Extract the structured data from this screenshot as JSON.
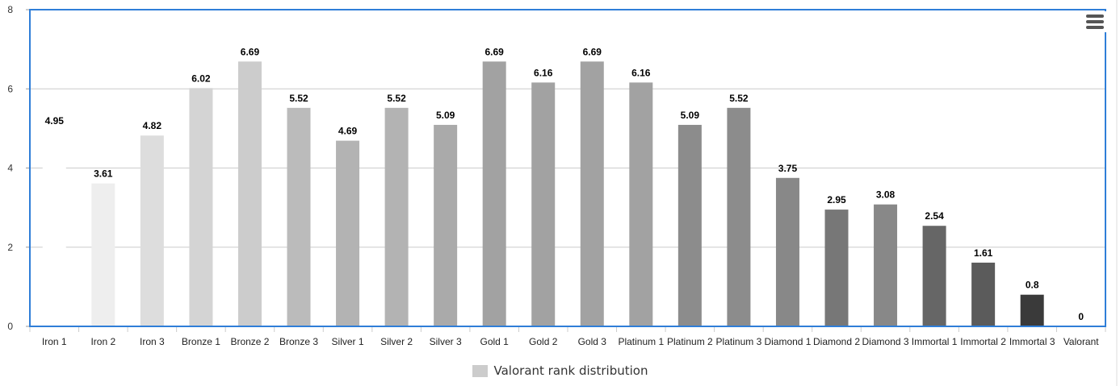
{
  "chart_data": {
    "type": "bar",
    "categories": [
      "Iron 1",
      "Iron 2",
      "Iron 3",
      "Bronze 1",
      "Bronze 2",
      "Bronze 3",
      "Silver 1",
      "Silver 2",
      "Silver 3",
      "Gold 1",
      "Gold 2",
      "Gold 3",
      "Platinum 1",
      "Platinum 2",
      "Platinum 3",
      "Diamond 1",
      "Diamond 2",
      "Diamond 3",
      "Immortal 1",
      "Immortal 2",
      "Immortal 3",
      "Valorant"
    ],
    "series": [
      {
        "name": "Valorant rank distribution",
        "values": [
          4.95,
          3.61,
          4.82,
          6.02,
          6.69,
          5.52,
          4.69,
          5.52,
          5.09,
          6.69,
          6.16,
          6.69,
          6.16,
          5.09,
          5.52,
          3.75,
          2.95,
          3.08,
          2.54,
          1.61,
          0.8,
          0
        ]
      }
    ],
    "bar_colors": [
      "#ffffff",
      "#eeeeee",
      "#dddddd",
      "#d4d4d4",
      "#cccccc",
      "#bbbbbb",
      "#b3b3b3",
      "#b3b3b3",
      "#aaaaaa",
      "#a2a2a2",
      "#a2a2a2",
      "#a2a2a2",
      "#a2a2a2",
      "#8c8c8c",
      "#8c8c8c",
      "#888888",
      "#777777",
      "#888888",
      "#666666",
      "#5b5b5b",
      "#3a3a3a",
      "#333333"
    ],
    "data_labels": [
      "4.95",
      "3.61",
      "4.82",
      "6.02",
      "6.69",
      "5.52",
      "4.69",
      "5.52",
      "5.09",
      "6.69",
      "6.16",
      "6.69",
      "6.16",
      "5.09",
      "5.52",
      "3.75",
      "2.95",
      "3.08",
      "2.54",
      "1.61",
      "0.8",
      "0"
    ],
    "y_ticks": [
      "0",
      "2",
      "4",
      "6",
      "8"
    ],
    "ylim": [
      0,
      8
    ],
    "grid": true,
    "title": "",
    "xlabel": "",
    "ylabel": "",
    "legend_position": "bottom-center",
    "legend_swatch_color": "#cccccc",
    "frame_color": "#2f7ed8"
  },
  "menu": {
    "icon": "hamburger-menu-icon"
  }
}
